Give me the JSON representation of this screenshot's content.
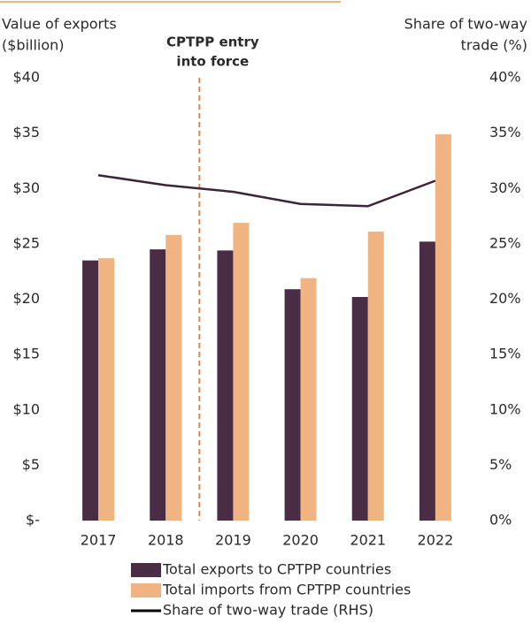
{
  "chart_data": {
    "type": "bar_line",
    "y_axis_title": [
      "Value of exports",
      "($billion)"
    ],
    "y2_axis_title": [
      "Share of two-way",
      "trade (%)"
    ],
    "annotation": [
      "CPTPP entry",
      "into force"
    ],
    "categories": [
      "2017",
      "2018",
      "2019",
      "2020",
      "2021",
      "2022"
    ],
    "series": [
      {
        "name": "Total exports to CPTPP countries",
        "color": "#4a2c45",
        "type": "bar",
        "values": [
          23.5,
          24.5,
          24.4,
          20.9,
          20.2,
          25.2
        ]
      },
      {
        "name": "Total imports from CPTPP countries",
        "color": "#f0b482",
        "type": "bar",
        "values": [
          23.7,
          25.8,
          26.9,
          21.9,
          26.1,
          34.9
        ]
      },
      {
        "name": "Share of two-way trade (RHS)",
        "color": "#3d2438",
        "type": "line",
        "axis": "y2",
        "values": [
          31.2,
          30.3,
          29.7,
          28.6,
          28.4,
          30.7
        ]
      }
    ],
    "ylim": [
      0,
      40
    ],
    "yticks": [
      {
        "value": 0,
        "label": "$-"
      },
      {
        "value": 5,
        "label": "$5"
      },
      {
        "value": 10,
        "label": "$10"
      },
      {
        "value": 15,
        "label": "$15"
      },
      {
        "value": 20,
        "label": "$20"
      },
      {
        "value": 25,
        "label": "$25"
      },
      {
        "value": 30,
        "label": "$30"
      },
      {
        "value": 35,
        "label": "$35"
      },
      {
        "value": 40,
        "label": "$40"
      }
    ],
    "y2lim": [
      0,
      40
    ],
    "y2ticks": [
      {
        "value": 0,
        "label": "0%"
      },
      {
        "value": 5,
        "label": "5%"
      },
      {
        "value": 10,
        "label": "10%"
      },
      {
        "value": 15,
        "label": "15%"
      },
      {
        "value": 20,
        "label": "20%"
      },
      {
        "value": 25,
        "label": "25%"
      },
      {
        "value": 30,
        "label": "30%"
      },
      {
        "value": 35,
        "label": "35%"
      },
      {
        "value": 40,
        "label": "40%"
      }
    ]
  }
}
